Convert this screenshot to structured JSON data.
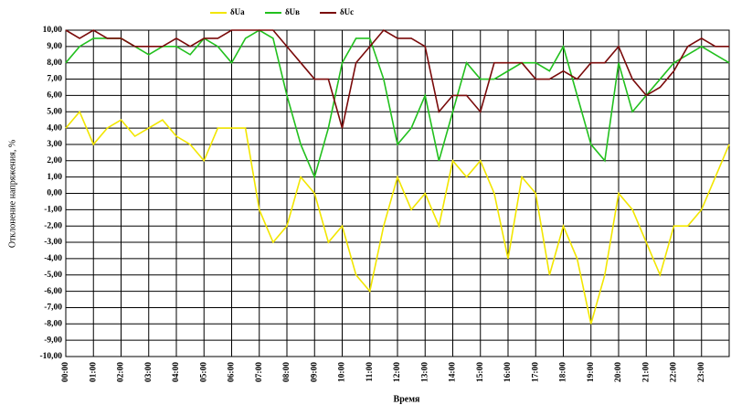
{
  "chart_data": {
    "type": "line",
    "xlabel": "Время",
    "ylabel": "Отклонение напряжения, %",
    "x": [
      0,
      0.5,
      1,
      1.5,
      2,
      2.5,
      3,
      3.5,
      4,
      4.5,
      5,
      5.5,
      6,
      6.5,
      7,
      7.5,
      8,
      8.5,
      9,
      9.5,
      10,
      10.5,
      11,
      11.5,
      12,
      12.5,
      13,
      13.5,
      14,
      14.5,
      15,
      15.5,
      16,
      16.5,
      17,
      17.5,
      18,
      18.5,
      19,
      19.5,
      20,
      20.5,
      21,
      21.5,
      22,
      22.5,
      23,
      23.5,
      24
    ],
    "series": [
      {
        "name": "δUa",
        "color": "#f2e600",
        "values": [
          4,
          5,
          3,
          4,
          4.5,
          3.5,
          4,
          4.5,
          3.5,
          3,
          2,
          4,
          4,
          4,
          -1,
          -3,
          -2,
          1,
          0,
          -3,
          -2,
          -5,
          -6,
          -2,
          1,
          -1,
          0,
          -2,
          2,
          1,
          2,
          0,
          -4,
          1,
          0,
          -5,
          -2,
          -4,
          -8,
          -5,
          0,
          -1,
          -3,
          -5,
          -2,
          -2,
          -1,
          1,
          3
        ]
      },
      {
        "name": "δUв",
        "color": "#22c01e",
        "values": [
          8,
          9,
          9.5,
          9.5,
          9.5,
          9,
          8.5,
          9,
          9,
          8.5,
          9.5,
          9,
          8,
          9.5,
          10,
          9.5,
          6,
          3,
          1,
          4,
          8,
          9.5,
          9.5,
          7,
          3,
          4,
          6,
          2,
          5,
          8,
          7,
          7,
          7.5,
          8,
          8,
          7.5,
          9,
          6,
          3,
          2,
          8,
          5,
          6,
          7,
          8,
          8.5,
          9,
          8.5,
          8
        ]
      },
      {
        "name": "δUc",
        "color": "#7a0a0a",
        "values": [
          10,
          9.5,
          10,
          9.5,
          9.5,
          9,
          9,
          9,
          9.5,
          9,
          9.5,
          9.5,
          10,
          10,
          10,
          10,
          9,
          8,
          7,
          7,
          4,
          8,
          9,
          10,
          9.5,
          9.5,
          9,
          5,
          6,
          6,
          5,
          8,
          8,
          8,
          7,
          7,
          7.5,
          7,
          8,
          8,
          9,
          7,
          6,
          6.5,
          7.5,
          9,
          9.5,
          9,
          9
        ]
      }
    ],
    "xlim": [
      0,
      24
    ],
    "xticks": [
      {
        "value": 0,
        "label": "00:00"
      },
      {
        "value": 1,
        "label": "01:00"
      },
      {
        "value": 2,
        "label": "02:00"
      },
      {
        "value": 3,
        "label": "03:00"
      },
      {
        "value": 4,
        "label": "04:00"
      },
      {
        "value": 5,
        "label": "05:00"
      },
      {
        "value": 6,
        "label": "06:00"
      },
      {
        "value": 7,
        "label": "07:00"
      },
      {
        "value": 8,
        "label": "08:00"
      },
      {
        "value": 9,
        "label": "09:00"
      },
      {
        "value": 10,
        "label": "10:00"
      },
      {
        "value": 11,
        "label": "11:00"
      },
      {
        "value": 12,
        "label": "12:00"
      },
      {
        "value": 13,
        "label": "13:00"
      },
      {
        "value": 14,
        "label": "14:00"
      },
      {
        "value": 15,
        "label": "15:00"
      },
      {
        "value": 16,
        "label": "16:00"
      },
      {
        "value": 17,
        "label": "17:00"
      },
      {
        "value": 18,
        "label": "18:00"
      },
      {
        "value": 19,
        "label": "19:00"
      },
      {
        "value": 20,
        "label": "20:00"
      },
      {
        "value": 21,
        "label": "21:00"
      },
      {
        "value": 22,
        "label": "22:00"
      },
      {
        "value": 23,
        "label": "23:00"
      }
    ],
    "ylim": [
      -10,
      10
    ],
    "yticks": [
      {
        "value": -10,
        "label": "-10,00"
      },
      {
        "value": -9,
        "label": "-9,00"
      },
      {
        "value": -8,
        "label": "-8,00"
      },
      {
        "value": -7,
        "label": "-7,00"
      },
      {
        "value": -6,
        "label": "-6,00"
      },
      {
        "value": -5,
        "label": "-5,00"
      },
      {
        "value": -4,
        "label": "-4,00"
      },
      {
        "value": -3,
        "label": "-3,00"
      },
      {
        "value": -2,
        "label": "-2,00"
      },
      {
        "value": -1,
        "label": "-1,00"
      },
      {
        "value": 0,
        "label": "0,00"
      },
      {
        "value": 1,
        "label": "1,00"
      },
      {
        "value": 2,
        "label": "2,00"
      },
      {
        "value": 3,
        "label": "3,00"
      },
      {
        "value": 4,
        "label": "4,00"
      },
      {
        "value": 5,
        "label": "5,00"
      },
      {
        "value": 6,
        "label": "6,00"
      },
      {
        "value": 7,
        "label": "7,00"
      },
      {
        "value": 8,
        "label": "8,00"
      },
      {
        "value": 9,
        "label": "9,00"
      },
      {
        "value": 10,
        "label": "10,00"
      }
    ],
    "grid": true
  }
}
